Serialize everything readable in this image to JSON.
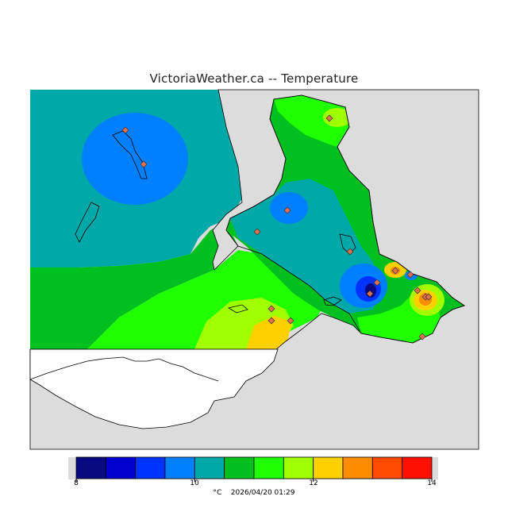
{
  "title": "VictoriaWeather.ca -- Temperature",
  "colors": {
    "land_gray": "#dcdcdc",
    "water_teal": "#00a8a8",
    "marker_fill": "#e07050",
    "scale": [
      "#0a0a80",
      "#0000cc",
      "#0033ff",
      "#0080ff",
      "#00a8a8",
      "#00c020",
      "#20ff00",
      "#a0ff00",
      "#ffd000",
      "#ff8c00",
      "#ff4a00",
      "#ff1000"
    ]
  },
  "legend": {
    "ticks": [
      "8",
      "10",
      "12",
      "14"
    ],
    "unit": "°C",
    "timestamp": "2026/04/20 01:29"
  }
}
